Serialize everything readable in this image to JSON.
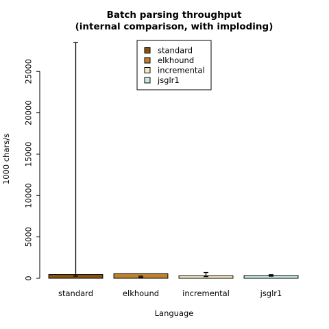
{
  "chart_data": {
    "type": "bar",
    "title": "Batch parsing throughput",
    "subtitle": "(internal comparison, with imploding)",
    "xlabel": "Language",
    "ylabel": "1000 chars/s",
    "ylim": [
      0,
      28500
    ],
    "yticks": [
      0,
      5000,
      10000,
      15000,
      20000,
      25000
    ],
    "yticklabels": [
      "0",
      "5000",
      "10000",
      "15000",
      "20000",
      "25000"
    ],
    "categories": [
      "standard",
      "elkhound",
      "incremental",
      "jsglr1"
    ],
    "values": [
      450,
      560,
      310,
      330
    ],
    "error_low": [
      250,
      120,
      200,
      250
    ],
    "error_high": [
      28500,
      250,
      700,
      430
    ],
    "colors": [
      "#8c510a",
      "#bf812d",
      "#f6e8c3",
      "#c7eae5"
    ],
    "grid": false,
    "legend": {
      "placement": "top-center",
      "entries": [
        "standard",
        "elkhound",
        "incremental",
        "jsglr1"
      ]
    }
  }
}
